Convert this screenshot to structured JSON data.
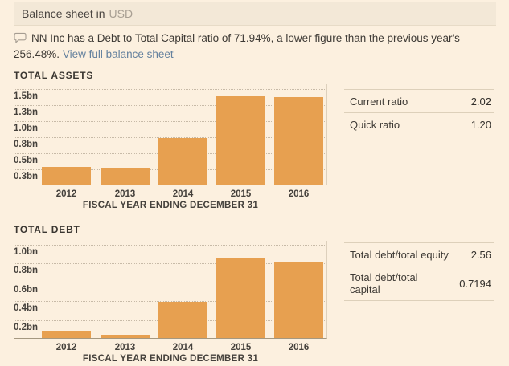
{
  "header": {
    "title": "Balance sheet in",
    "currency": "USD"
  },
  "comment": {
    "text": "NN Inc has a Debt to Total Capital ratio of 71.94%, a lower figure than the previous year's 256.48%.",
    "link_label": "View full balance sheet"
  },
  "chart_data": [
    {
      "type": "bar",
      "title": "TOTAL ASSETS",
      "xlabel": "FISCAL YEAR ENDING DECEMBER 31",
      "categories": [
        "2012",
        "2013",
        "2014",
        "2015",
        "2016"
      ],
      "values": [
        0.27,
        0.26,
        0.73,
        1.39,
        1.36
      ],
      "value_unit": "bn USD",
      "yticks": [
        {
          "label": "0.3bn",
          "value": 0.25
        },
        {
          "label": "0.5bn",
          "value": 0.5
        },
        {
          "label": "0.8bn",
          "value": 0.75
        },
        {
          "label": "1.0bn",
          "value": 1.0
        },
        {
          "label": "1.3bn",
          "value": 1.25
        },
        {
          "label": "1.5bn",
          "value": 1.5
        }
      ],
      "ylim": [
        0,
        1.575
      ],
      "grid": "dotted-horizontal",
      "legend": "none",
      "bar_color": "#e7a050"
    },
    {
      "type": "bar",
      "title": "TOTAL DEBT",
      "xlabel": "FISCAL YEAR ENDING DECEMBER 31",
      "categories": [
        "2012",
        "2013",
        "2014",
        "2015",
        "2016"
      ],
      "values": [
        0.07,
        0.03,
        0.38,
        0.85,
        0.81
      ],
      "value_unit": "bn USD",
      "yticks": [
        {
          "label": "0.2bn",
          "value": 0.2
        },
        {
          "label": "0.4bn",
          "value": 0.4
        },
        {
          "label": "0.6bn",
          "value": 0.6
        },
        {
          "label": "0.8bn",
          "value": 0.8
        },
        {
          "label": "1.0bn",
          "value": 1.0
        }
      ],
      "ylim": [
        0,
        1.04
      ],
      "grid": "dotted-horizontal",
      "legend": "none",
      "bar_color": "#e7a050"
    }
  ],
  "ratio_tables": [
    {
      "rows": [
        {
          "label": "Current ratio",
          "value": "2.02"
        },
        {
          "label": "Quick ratio",
          "value": "1.20"
        }
      ]
    },
    {
      "rows": [
        {
          "label": "Total debt/total equity",
          "value": "2.56"
        },
        {
          "label": "Total debt/total capital",
          "value": "0.7194"
        }
      ]
    }
  ],
  "colors": {
    "background": "#fcf0df",
    "header_bar": "#f3e8d7",
    "bar_fill": "#e7a050",
    "link": "#64819e",
    "grid_line": "#c7baa7",
    "axis_line": "#a59880",
    "text_dark": "#3e3a35"
  }
}
